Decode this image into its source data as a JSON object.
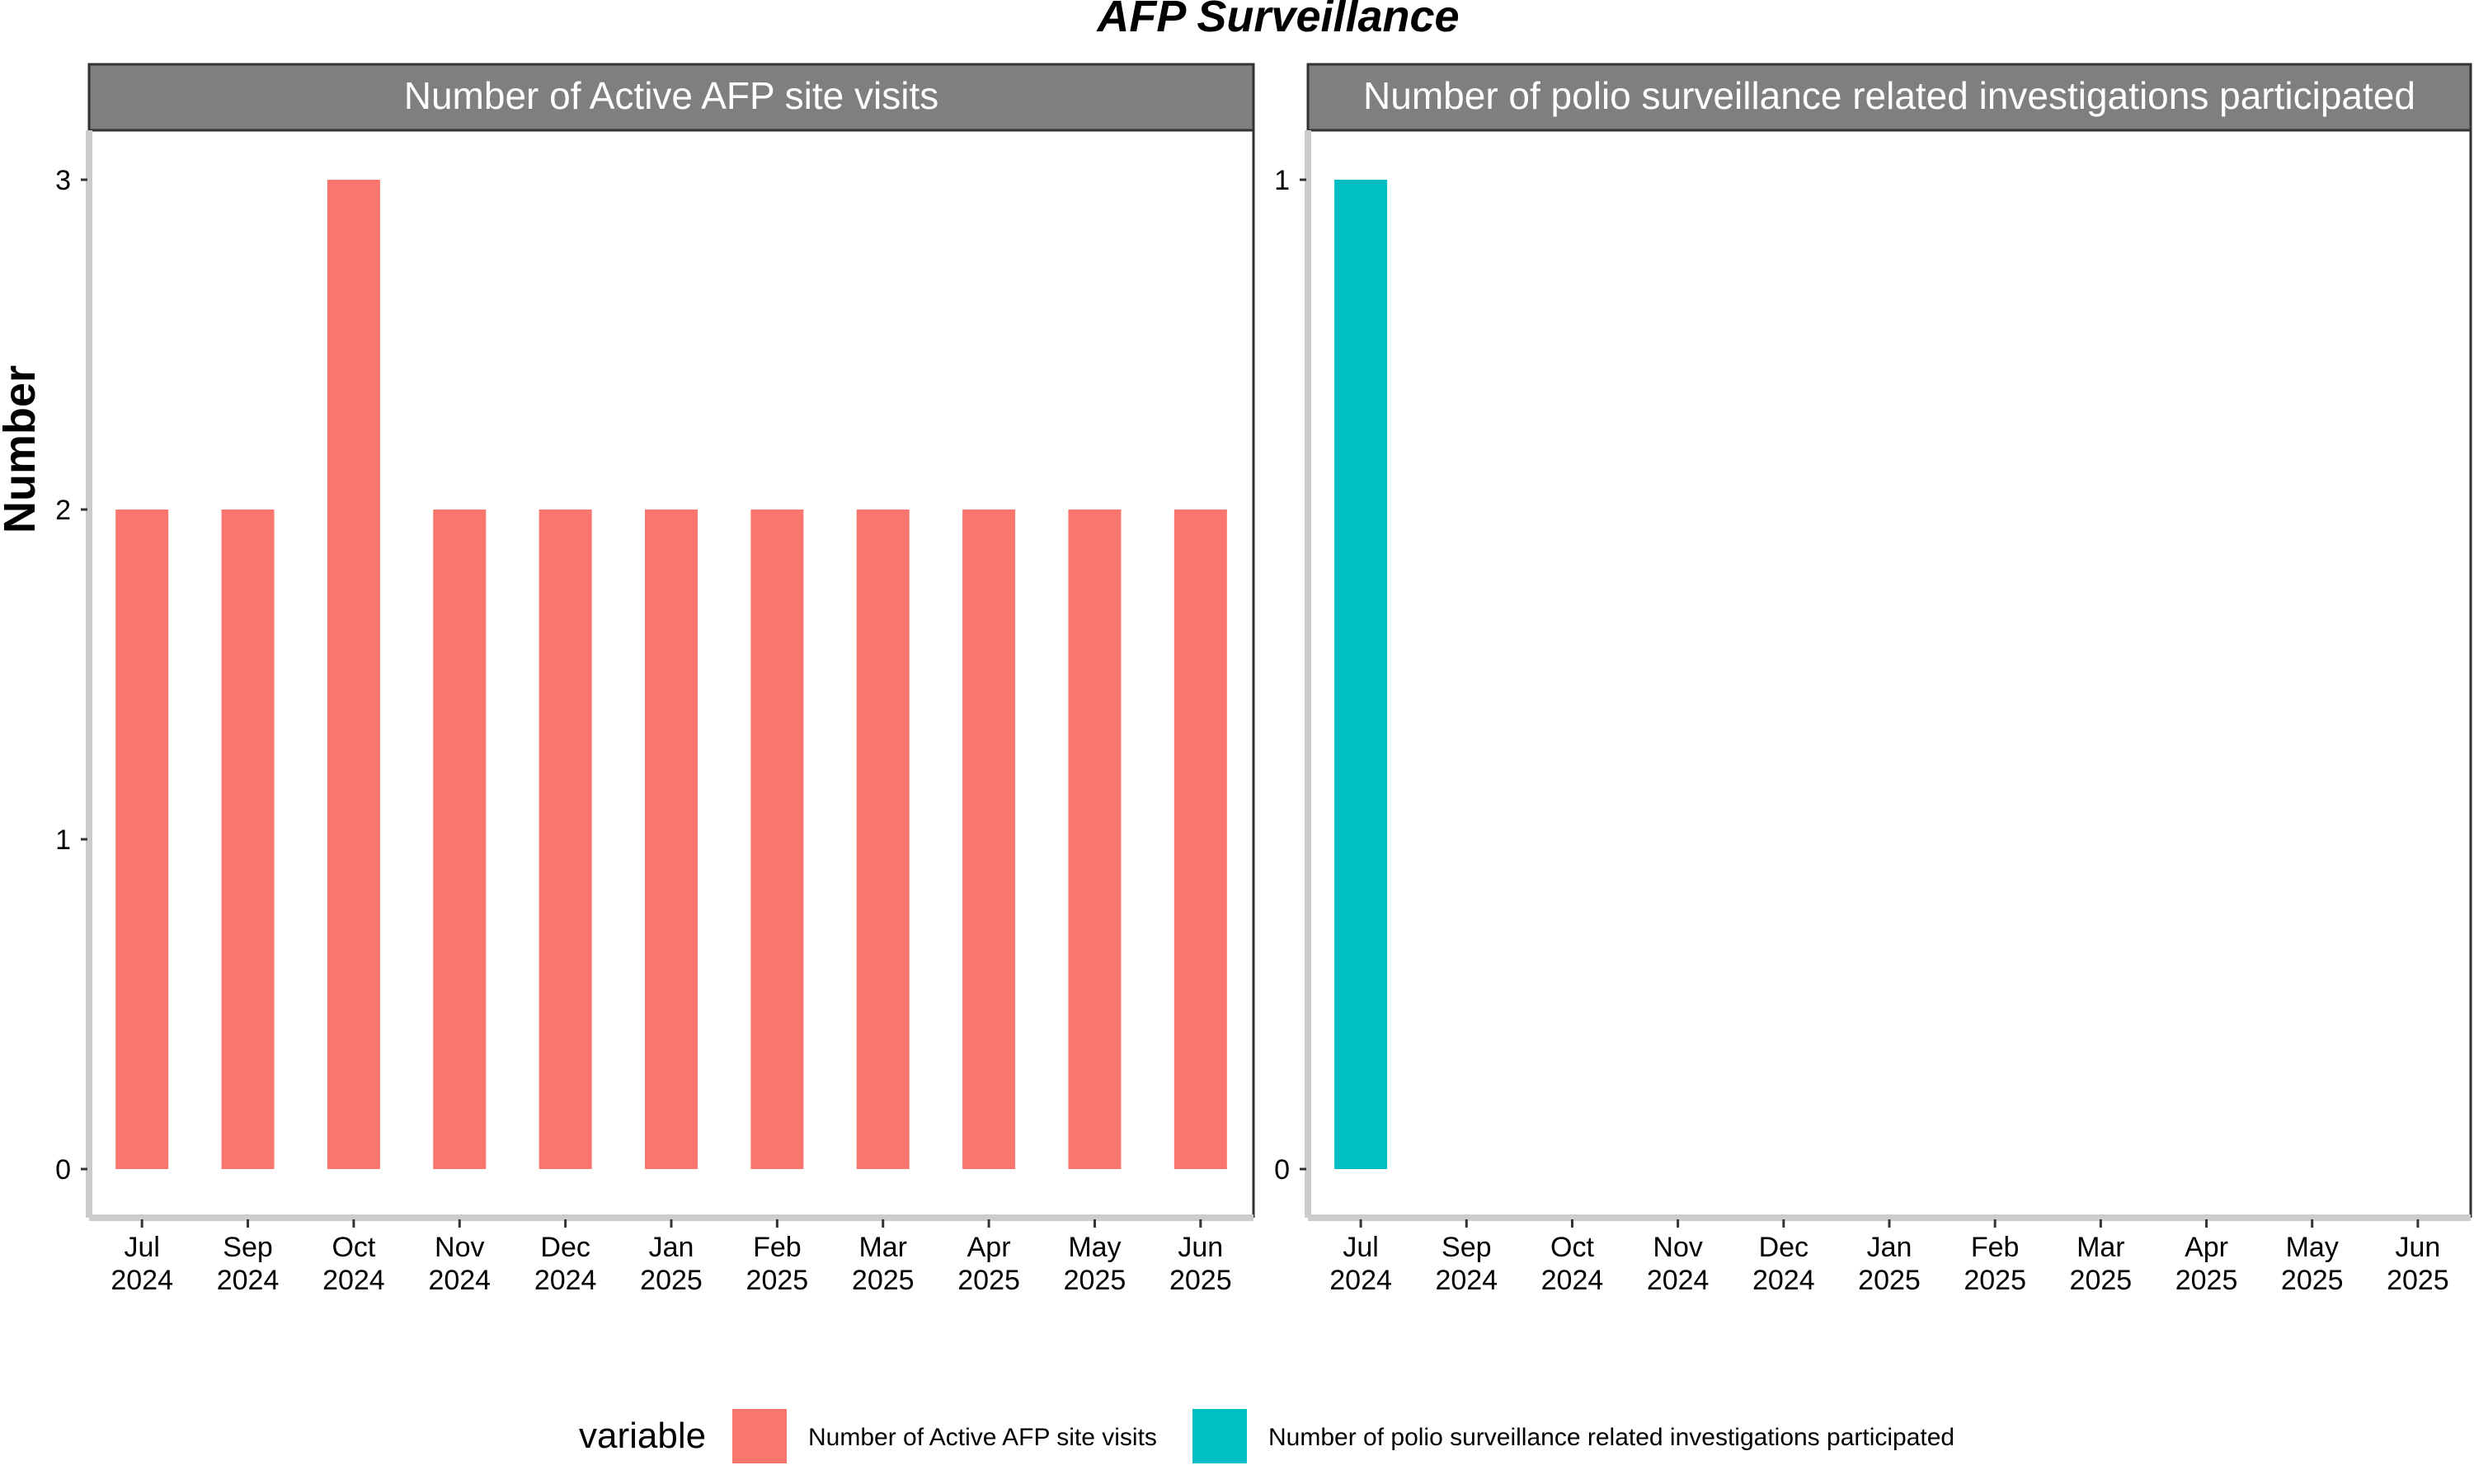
{
  "chart_data": {
    "type": "bar",
    "title": "AFP Surveillance",
    "ylabel": "Number",
    "categories": [
      "Jul\n2024",
      "Sep\n2024",
      "Oct\n2024",
      "Nov\n2024",
      "Dec\n2024",
      "Jan\n2025",
      "Feb\n2025",
      "Mar\n2025",
      "Apr\n2025",
      "May\n2025",
      "Jun\n2025"
    ],
    "panels": [
      {
        "strip_label": "Number of Active AFP site visits",
        "ylim": [
          0,
          3
        ],
        "yticks": [
          0,
          1,
          2,
          3
        ],
        "series": [
          {
            "name": "Number of Active AFP site visits",
            "color": "#F8766D",
            "values": [
              2,
              2,
              3,
              2,
              2,
              2,
              2,
              2,
              2,
              2,
              2
            ]
          }
        ]
      },
      {
        "strip_label": "Number of polio surveillance related investigations participated",
        "ylim": [
          0,
          1
        ],
        "yticks": [
          0,
          1
        ],
        "series": [
          {
            "name": "Number of polio surveillance related investigations participated",
            "color": "#00BFC4",
            "values": [
              1,
              null,
              null,
              null,
              null,
              null,
              null,
              null,
              null,
              null,
              null
            ]
          }
        ]
      }
    ],
    "legend": {
      "title": "variable",
      "position": "bottom",
      "items": [
        {
          "label": "Number of Active AFP site visits",
          "color": "#F8766D"
        },
        {
          "label": "Number of polio surveillance related investigations participated",
          "color": "#00BFC4"
        }
      ]
    },
    "grid": false
  }
}
